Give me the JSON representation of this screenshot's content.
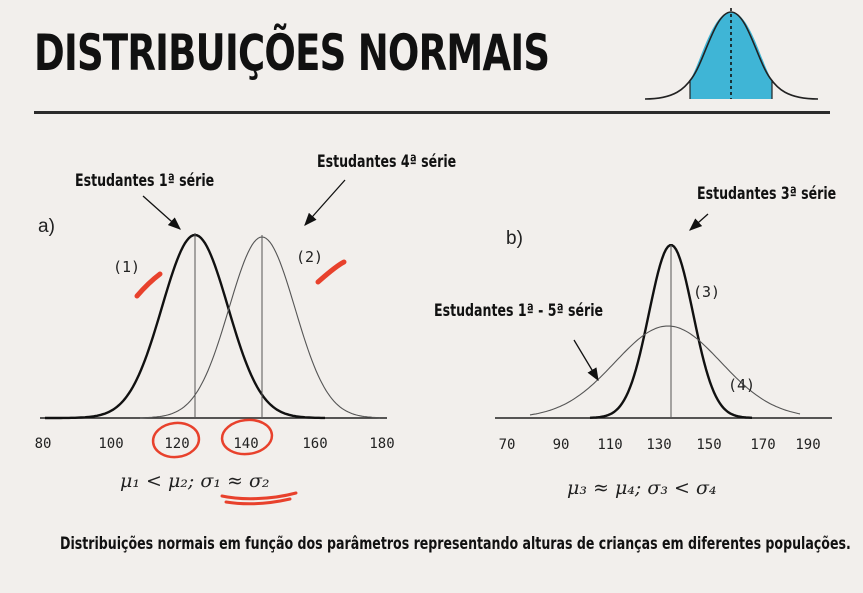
{
  "header": {
    "title": "DISTRIBUIÇÕES NORMAIS"
  },
  "caption": "Distribuições normais em função dos parâmetros representando alturas de crianças em diferentes populações.",
  "panel_a": {
    "label": "a)",
    "annotation_1": "Estudantes 1ª série",
    "annotation_2": "Estudantes 4ª série",
    "curve_1_label": "(1)",
    "curve_2_label": "(2)",
    "ticks": [
      "80",
      "100",
      "120",
      "140",
      "160",
      "180"
    ],
    "formula": "μ₁ < μ₂;  σ₁ ≈ σ₂"
  },
  "panel_b": {
    "label": "b)",
    "annotation_3": "Estudantes 3ª série",
    "annotation_4": "Estudantes 1ª - 5ª série",
    "curve_3_label": "(3)",
    "curve_4_label": "(4)",
    "ticks": [
      "70",
      "90",
      "110",
      "130",
      "150",
      "170",
      "190"
    ],
    "formula": "μ₃ ≈ μ₄;  σ₃ < σ₄"
  },
  "colors": {
    "background": "#f2efec",
    "ink": "#111111",
    "bell_fill": "#3fb5d6",
    "highlight": "#e8412c"
  }
}
